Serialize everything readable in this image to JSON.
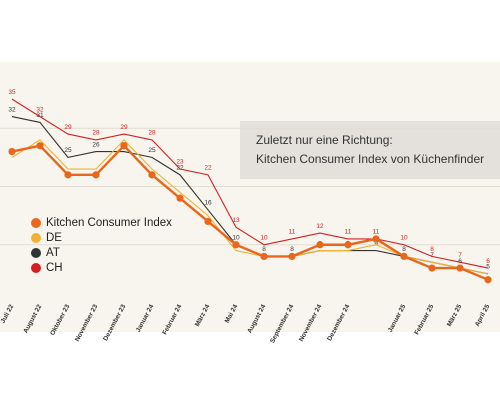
{
  "chart_data": {
    "type": "line",
    "annotation": [
      "Zuletzt nur eine Richtung:",
      "Kitchen Consumer Index von Küchenfinder"
    ],
    "categories": [
      "Juli 22",
      "August 22",
      "Oktober 23",
      "November 23",
      "Dezember 23",
      "Januar 24",
      "Februar 24",
      "März 24",
      "Mai 24",
      "August 24",
      "September 24",
      "November 24",
      "Dezember 24",
      null,
      "Januar 25",
      "Februar 25",
      "März 25",
      "April 25"
    ],
    "series": [
      {
        "name": "Kitchen Consumer Index",
        "color": "#e8671c",
        "values": [
          26,
          27,
          22,
          22,
          27,
          22,
          18,
          14,
          10,
          8,
          8,
          10,
          10,
          11,
          8,
          6,
          6,
          4
        ]
      },
      {
        "name": "DE",
        "color": "#f2b134",
        "values": [
          25,
          28,
          23,
          23,
          28,
          23,
          19,
          15,
          9,
          8,
          8,
          9,
          9,
          10,
          8,
          7,
          6,
          5
        ]
      },
      {
        "name": "AT",
        "color": "#333333",
        "values": [
          32,
          31,
          25,
          26,
          26,
          25,
          22,
          16,
          10,
          8,
          8,
          9,
          9,
          9,
          8,
          7,
          6,
          5
        ]
      },
      {
        "name": "CH",
        "color": "#d42020",
        "values": [
          35,
          32,
          29,
          28,
          29,
          28,
          23,
          22,
          13,
          10,
          11,
          12,
          11,
          11,
          10,
          8,
          7,
          6
        ]
      }
    ],
    "ylim": [
      0,
      40
    ],
    "yticks": [
      10,
      20,
      30
    ],
    "grid": true
  }
}
